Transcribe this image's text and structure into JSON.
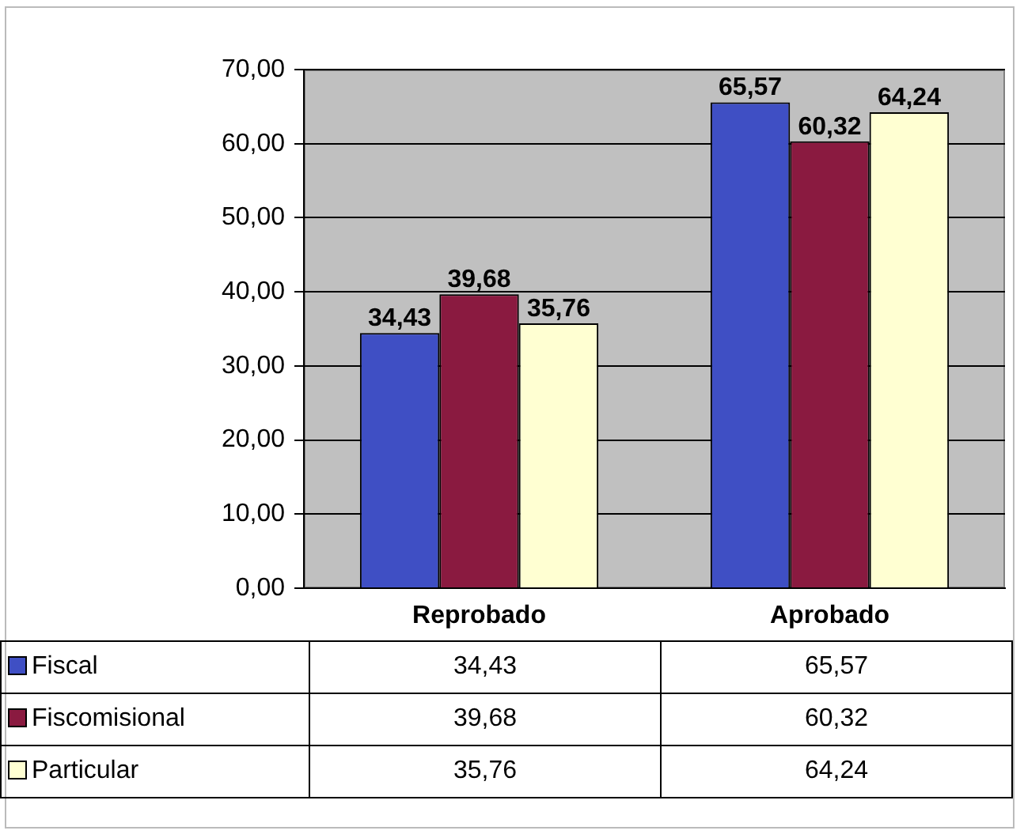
{
  "chart_data": {
    "type": "bar",
    "categories": [
      "Reprobado",
      "Aprobado"
    ],
    "series": [
      {
        "name": "Fiscal",
        "color": "#3f4fc4",
        "values": [
          34.43,
          65.57
        ],
        "value_labels": [
          "34,43",
          "65,57"
        ]
      },
      {
        "name": "Fiscomisional",
        "color": "#8a1a40",
        "values": [
          39.68,
          60.32
        ],
        "value_labels": [
          "39,68",
          "60,32"
        ]
      },
      {
        "name": "Particular",
        "color": "#ffffd2",
        "values": [
          35.76,
          64.24
        ],
        "value_labels": [
          "35,76",
          "64,24"
        ]
      }
    ],
    "ylim": [
      0,
      70
    ],
    "yticks": [
      {
        "value": 0,
        "label": "0,00"
      },
      {
        "value": 10,
        "label": "10,00"
      },
      {
        "value": 20,
        "label": "20,00"
      },
      {
        "value": 30,
        "label": "30,00"
      },
      {
        "value": 40,
        "label": "40,00"
      },
      {
        "value": 50,
        "label": "50,00"
      },
      {
        "value": 60,
        "label": "60,00"
      },
      {
        "value": 70,
        "label": "70,00"
      }
    ],
    "grid": "y",
    "legend": "bottom"
  }
}
